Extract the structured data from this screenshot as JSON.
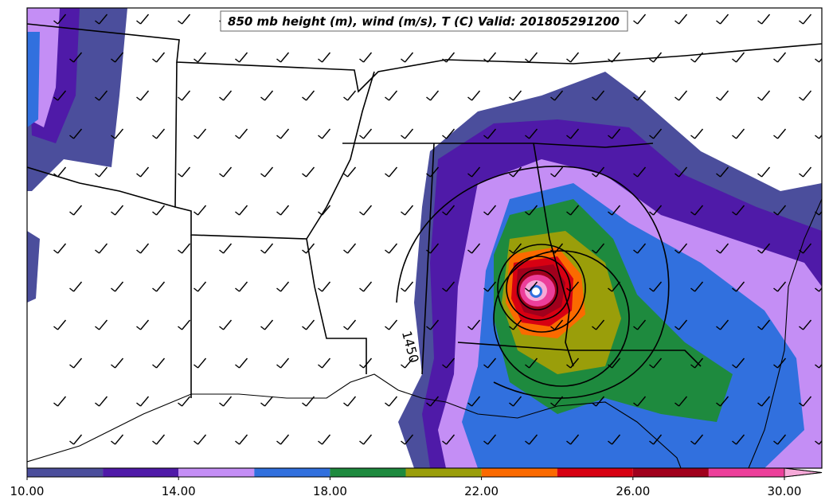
{
  "map": {
    "title": "850 mb height (m), wind (m/s), T (C) Valid: 201805291200",
    "contour_label": "1450",
    "colorbar": {
      "levels": [
        10,
        12,
        14,
        16,
        18,
        20,
        22,
        24,
        26,
        28,
        30
      ],
      "colors": [
        "#4b4e9c",
        "#4f1aa8",
        "#c48ef5",
        "#3170de",
        "#1e8a3e",
        "#9a9e0a",
        "#fb6a00",
        "#d70012",
        "#a0001c",
        "#ec3f9a",
        "#f6a9d8"
      ],
      "ticks": [
        {
          "value": 10,
          "label": "10.00"
        },
        {
          "value": 14,
          "label": "14.00"
        },
        {
          "value": 18,
          "label": "18.00"
        },
        {
          "value": 22,
          "label": "22.00"
        },
        {
          "value": 26,
          "label": "26.00"
        },
        {
          "value": 30,
          "label": "30.00"
        }
      ]
    }
  }
}
